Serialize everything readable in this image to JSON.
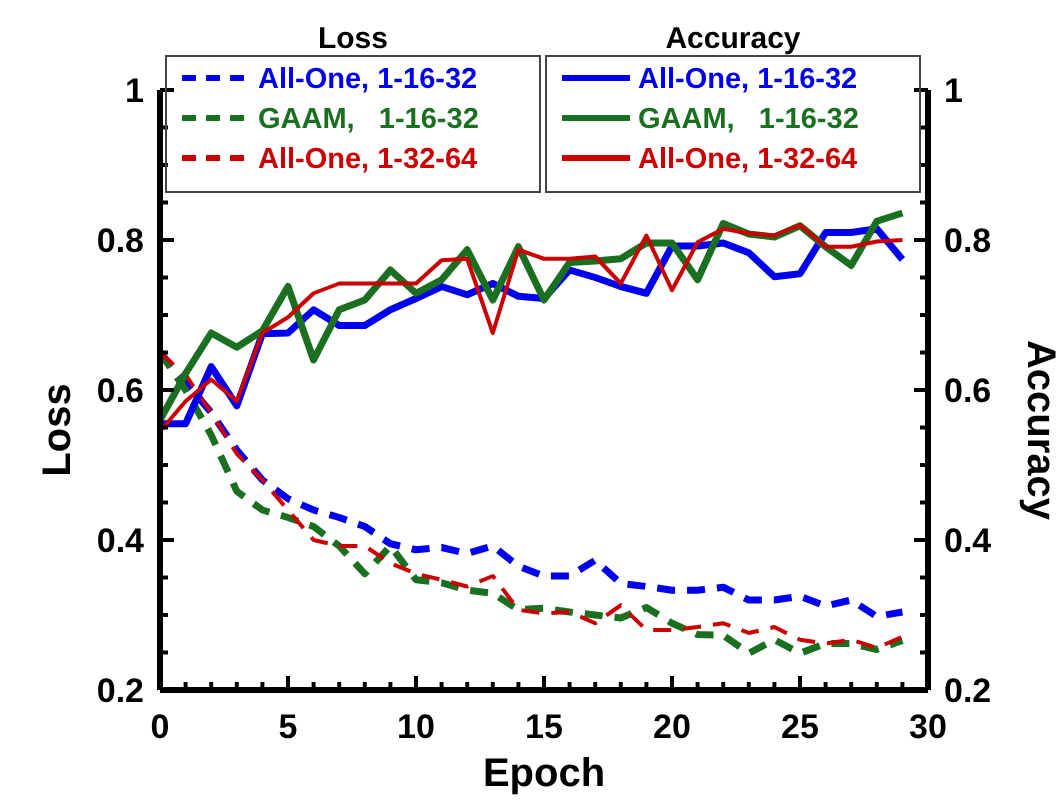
{
  "chart_data": {
    "type": "line",
    "xlabel": "Epoch",
    "ylabel": "Loss",
    "y2label": "Accuracy",
    "annotations": [
      "Loss",
      "Accuracy"
    ],
    "x": [
      0,
      1,
      2,
      3,
      4,
      5,
      6,
      7,
      8,
      9,
      10,
      11,
      12,
      13,
      14,
      15,
      16,
      17,
      18,
      19,
      20,
      21,
      22,
      23,
      24,
      25,
      26,
      27,
      28,
      29
    ],
    "xlim": [
      0,
      30
    ],
    "xticks": [
      0,
      {
        "value": 1,
        "label": null
      },
      {
        "value": 2,
        "label": null
      },
      {
        "value": 3,
        "label": null
      },
      {
        "value": 4,
        "label": null
      },
      5,
      {
        "value": 6,
        "label": null
      },
      {
        "value": 7,
        "label": null
      },
      {
        "value": 8,
        "label": null
      },
      {
        "value": 9,
        "label": null
      },
      10,
      {
        "value": 11,
        "label": null
      },
      {
        "value": 12,
        "label": null
      },
      {
        "value": 13,
        "label": null
      },
      {
        "value": 14,
        "label": null
      },
      15,
      {
        "value": 16,
        "label": null
      },
      {
        "value": 17,
        "label": null
      },
      {
        "value": 18,
        "label": null
      },
      {
        "value": 19,
        "label": null
      },
      20,
      {
        "value": 21,
        "label": null
      },
      {
        "value": 22,
        "label": null
      },
      {
        "value": 23,
        "label": null
      },
      {
        "value": 24,
        "label": null
      },
      25,
      {
        "value": 26,
        "label": null
      },
      {
        "value": 27,
        "label": null
      },
      {
        "value": 28,
        "label": null
      },
      {
        "value": 29,
        "label": null
      },
      30
    ],
    "ylim": [
      0.2,
      1
    ],
    "yticks": [
      0.2,
      {
        "value": 0.25,
        "label": null
      },
      {
        "value": 0.3,
        "label": null
      },
      {
        "value": 0.35,
        "label": null
      },
      0.4,
      {
        "value": 0.45,
        "label": null
      },
      {
        "value": 0.5,
        "label": null
      },
      {
        "value": 0.55,
        "label": null
      },
      0.6,
      {
        "value": 0.65,
        "label": null
      },
      {
        "value": 0.7,
        "label": null
      },
      {
        "value": 0.75,
        "label": null
      },
      0.8,
      {
        "value": 0.85,
        "label": null
      },
      {
        "value": 0.9,
        "label": null
      },
      {
        "value": 0.95,
        "label": null
      },
      1
    ],
    "y2lim": [
      0.2,
      1
    ],
    "y2ticks": [
      0.2,
      {
        "value": 0.25,
        "label": null
      },
      {
        "value": 0.3,
        "label": null
      },
      {
        "value": 0.35,
        "label": null
      },
      0.4,
      {
        "value": 0.45,
        "label": null
      },
      {
        "value": 0.5,
        "label": null
      },
      {
        "value": 0.55,
        "label": null
      },
      0.6,
      {
        "value": 0.65,
        "label": null
      },
      {
        "value": 0.7,
        "label": null
      },
      {
        "value": 0.75,
        "label": null
      },
      0.8,
      {
        "value": 0.85,
        "label": null
      },
      {
        "value": 0.9,
        "label": null
      },
      {
        "value": 0.95,
        "label": null
      },
      1
    ],
    "legend": "top",
    "grid": false,
    "series": [
      {
        "name": "All-One, 1-16-32",
        "color": "#0000ee",
        "line_style": "dashed",
        "values": [
          0.65,
          0.61,
          0.57,
          0.52,
          0.48,
          0.455,
          0.44,
          0.43,
          0.418,
          0.395,
          0.387,
          0.39,
          0.382,
          0.392,
          0.365,
          0.352,
          0.352,
          0.373,
          0.342,
          0.338,
          0.333,
          0.333,
          0.337,
          0.32,
          0.32,
          0.325,
          0.312,
          0.32,
          0.298,
          0.304
        ]
      },
      {
        "name": "GAAM,   1-16-32",
        "color": "#1a7020",
        "line_style": "dashed",
        "values": [
          0.65,
          0.6,
          0.54,
          0.465,
          0.44,
          0.43,
          0.418,
          0.392,
          0.355,
          0.392,
          0.347,
          0.343,
          0.333,
          0.329,
          0.307,
          0.309,
          0.304,
          0.3,
          0.296,
          0.31,
          0.289,
          0.274,
          0.273,
          0.249,
          0.267,
          0.249,
          0.262,
          0.262,
          0.254,
          0.266
        ]
      },
      {
        "name": "All-One, 1-32-64",
        "color": "#cc0000",
        "line_style": "dashed",
        "values": [
          0.65,
          0.62,
          0.57,
          0.515,
          0.48,
          0.44,
          0.4,
          0.392,
          0.392,
          0.369,
          0.355,
          0.347,
          0.338,
          0.352,
          0.307,
          0.302,
          0.304,
          0.289,
          0.313,
          0.28,
          0.28,
          0.284,
          0.289,
          0.276,
          0.284,
          0.267,
          0.262,
          0.267,
          0.256,
          0.271
        ]
      },
      {
        "name": "All-One, 1-16-32",
        "color": "#0000ee",
        "line_style": "solid",
        "axis": "y2",
        "values": [
          0.555,
          0.555,
          0.631,
          0.579,
          0.675,
          0.676,
          0.707,
          0.686,
          0.686,
          0.707,
          0.722,
          0.738,
          0.727,
          0.742,
          0.725,
          0.722,
          0.76,
          0.75,
          0.738,
          0.729,
          0.792,
          0.792,
          0.796,
          0.783,
          0.751,
          0.755,
          0.81,
          0.81,
          0.815,
          0.774
        ]
      },
      {
        "name": "GAAM,   1-16-32",
        "color": "#1a7020",
        "line_style": "solid",
        "axis": "y2",
        "values": [
          0.56,
          0.622,
          0.676,
          0.657,
          0.679,
          0.738,
          0.64,
          0.707,
          0.72,
          0.76,
          0.729,
          0.747,
          0.787,
          0.72,
          0.791,
          0.72,
          0.77,
          0.772,
          0.775,
          0.796,
          0.796,
          0.747,
          0.822,
          0.808,
          0.804,
          0.819,
          0.791,
          0.766,
          0.825,
          0.836
        ]
      },
      {
        "name": "All-One, 1-32-64",
        "color": "#cc0000",
        "line_style": "solid",
        "axis": "y2",
        "values": [
          0.545,
          0.585,
          0.614,
          0.585,
          0.676,
          0.697,
          0.729,
          0.742,
          0.742,
          0.742,
          0.742,
          0.773,
          0.775,
          0.676,
          0.787,
          0.775,
          0.775,
          0.778,
          0.742,
          0.806,
          0.733,
          0.797,
          0.815,
          0.809,
          0.806,
          0.82,
          0.791,
          0.791,
          0.798,
          0.8
        ]
      }
    ]
  }
}
